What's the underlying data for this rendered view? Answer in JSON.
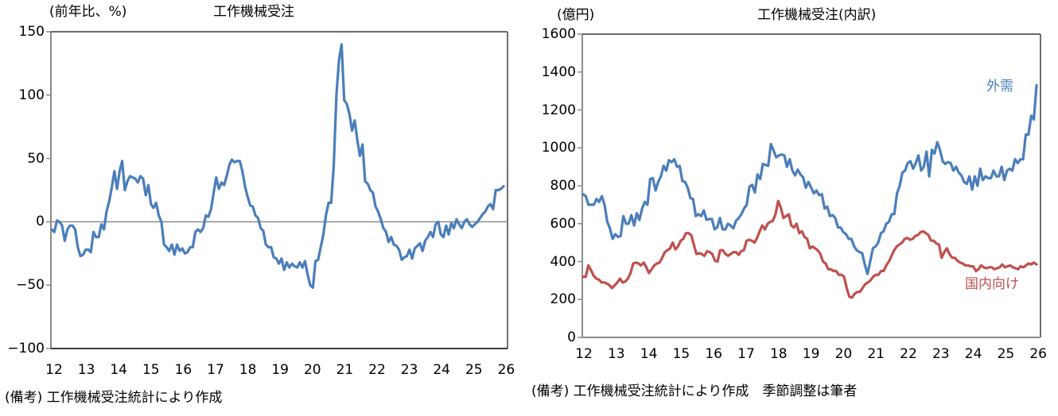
{
  "chart_data": [
    {
      "type": "line",
      "title": "工作機械受注",
      "ylabel": "(前年比、%)",
      "xlabel": "",
      "ylim": [
        -100,
        150
      ],
      "yticks": [
        150,
        100,
        50,
        0,
        -50,
        -100
      ],
      "categories": [
        "12",
        "13",
        "14",
        "15",
        "16",
        "17",
        "18",
        "19",
        "20",
        "21",
        "22",
        "23",
        "24",
        "25",
        "26"
      ],
      "x_start": "2012-01",
      "x_freq": "monthly",
      "legend": [],
      "grid": false,
      "zero_line": true,
      "note": "(備考) 工作機械受注統計により作成",
      "series": [
        {
          "name": "工作機械受注(前年比)",
          "color": "#4a7ebb",
          "values": [
            -6,
            -8,
            1,
            0,
            -3,
            -15,
            -6,
            -3,
            -3,
            -6,
            -20,
            -27,
            -26,
            -22,
            -22,
            -24,
            -8,
            -12,
            -12,
            -2,
            -6,
            8,
            16,
            27,
            40,
            26,
            40,
            48,
            25,
            32,
            36,
            35,
            34,
            31,
            36,
            34,
            21,
            29,
            14,
            11,
            15,
            5,
            0,
            -18,
            -20,
            -23,
            -18,
            -26,
            -18,
            -23,
            -21,
            -25,
            -24,
            -20,
            -20,
            -8,
            -6,
            -8,
            -5,
            5,
            4,
            10,
            23,
            35,
            26,
            31,
            29,
            36,
            45,
            49,
            47,
            48,
            48,
            40,
            28,
            20,
            13,
            12,
            5,
            3,
            -5,
            -7,
            -18,
            -20,
            -20,
            -28,
            -29,
            -33,
            -29,
            -38,
            -32,
            -36,
            -33,
            -35,
            -36,
            -32,
            -36,
            -31,
            -42,
            -50,
            -52,
            -31,
            -30,
            -20,
            -10,
            5,
            15,
            15,
            45,
            100,
            128,
            140,
            96,
            93,
            85,
            72,
            80,
            65,
            52,
            61,
            32,
            30,
            25,
            23,
            12,
            8,
            2,
            -5,
            -8,
            -16,
            -12,
            -18,
            -19,
            -22,
            -30,
            -28,
            -27,
            -22,
            -29,
            -21,
            -19,
            -17,
            -23,
            -15,
            -12,
            -8,
            -12,
            -2,
            0,
            -10,
            -12,
            -3,
            -10,
            -1,
            -5,
            2,
            -2,
            -5,
            0,
            2,
            -2,
            -4,
            -2,
            0,
            3,
            6,
            8,
            12,
            14,
            10,
            25,
            25,
            26,
            28
          ]
        }
      ]
    },
    {
      "type": "line",
      "title": "工作機械受注(内訳)",
      "ylabel": "(億円)",
      "xlabel": "",
      "ylim": [
        0,
        1600
      ],
      "yticks": [
        1600,
        1400,
        1200,
        1000,
        800,
        600,
        400,
        200,
        0
      ],
      "categories": [
        "12",
        "13",
        "14",
        "15",
        "16",
        "17",
        "18",
        "19",
        "20",
        "21",
        "22",
        "23",
        "24",
        "25",
        "26"
      ],
      "x_start": "2012-01",
      "x_freq": "monthly",
      "grid": false,
      "note": "(備考) 工作機械受注統計により作成　季節調整は筆者",
      "annotations": [
        {
          "text": "外需",
          "color": "#4a7ebb"
        },
        {
          "text": "国内向け",
          "color": "#c0504d"
        }
      ],
      "series": [
        {
          "name": "外需",
          "color": "#4a7ebb",
          "values": [
            755,
            745,
            700,
            700,
            700,
            730,
            715,
            745,
            700,
            610,
            575,
            520,
            545,
            530,
            535,
            640,
            600,
            600,
            645,
            590,
            655,
            620,
            680,
            715,
            700,
            835,
            840,
            775,
            820,
            850,
            905,
            880,
            935,
            925,
            940,
            900,
            905,
            825,
            820,
            790,
            735,
            730,
            640,
            650,
            640,
            670,
            620,
            625,
            625,
            570,
            580,
            630,
            570,
            570,
            600,
            590,
            575,
            615,
            630,
            650,
            680,
            700,
            795,
            805,
            765,
            860,
            835,
            915,
            910,
            905,
            1020,
            985,
            950,
            960,
            965,
            960,
            900,
            940,
            880,
            855,
            885,
            860,
            845,
            790,
            820,
            790,
            760,
            775,
            750,
            755,
            680,
            690,
            640,
            645,
            630,
            580,
            580,
            555,
            545,
            520,
            520,
            480,
            460,
            450,
            445,
            385,
            335,
            400,
            470,
            480,
            500,
            550,
            560,
            600,
            610,
            650,
            650,
            760,
            800,
            870,
            880,
            920,
            930,
            890,
            920,
            960,
            880,
            900,
            980,
            850,
            990,
            970,
            1030,
            990,
            930,
            915,
            925,
            920,
            880,
            900,
            870,
            855,
            820,
            810,
            850,
            780,
            850,
            800,
            890,
            830,
            850,
            840,
            840,
            880,
            850,
            850,
            900,
            830,
            880,
            890,
            880,
            940,
            920,
            940,
            940,
            1070,
            1070,
            1170,
            1150,
            1330
          ]
        },
        {
          "name": "国内向け",
          "color": "#c0504d",
          "values": [
            320,
            320,
            380,
            355,
            325,
            310,
            305,
            290,
            290,
            285,
            275,
            260,
            275,
            290,
            310,
            290,
            295,
            310,
            340,
            390,
            395,
            390,
            380,
            395,
            370,
            340,
            360,
            380,
            390,
            395,
            420,
            450,
            460,
            470,
            500,
            465,
            480,
            510,
            520,
            550,
            550,
            540,
            490,
            440,
            445,
            440,
            430,
            455,
            450,
            440,
            405,
            400,
            460,
            460,
            440,
            430,
            440,
            450,
            450,
            435,
            455,
            460,
            510,
            515,
            510,
            500,
            525,
            560,
            590,
            570,
            600,
            610,
            615,
            650,
            720,
            685,
            630,
            640,
            650,
            590,
            580,
            600,
            550,
            560,
            530,
            520,
            470,
            480,
            470,
            460,
            440,
            400,
            390,
            360,
            360,
            350,
            350,
            330,
            330,
            320,
            260,
            215,
            210,
            230,
            240,
            240,
            260,
            280,
            290,
            300,
            320,
            330,
            330,
            350,
            350,
            380,
            400,
            430,
            460,
            480,
            490,
            500,
            520,
            525,
            515,
            520,
            535,
            540,
            555,
            560,
            550,
            540,
            510,
            510,
            495,
            490,
            420,
            450,
            470,
            440,
            420,
            420,
            405,
            395,
            390,
            380,
            380,
            375,
            375,
            350,
            360,
            380,
            370,
            365,
            370,
            370,
            360,
            365,
            370,
            385,
            370,
            375,
            380,
            370,
            365,
            360,
            375,
            370,
            380,
            390,
            385,
            395,
            385
          ]
        }
      ]
    }
  ],
  "left_chart": {
    "title": "工作機械受注",
    "unit": "(前年比、%)",
    "yticks": [
      "150",
      "100",
      "50",
      "0",
      "−50",
      "−100"
    ],
    "xticks": [
      "12",
      "13",
      "14",
      "15",
      "16",
      "17",
      "18",
      "19",
      "20",
      "21",
      "22",
      "23",
      "24",
      "25",
      "26"
    ],
    "note": "(備考) 工作機械受注統計により作成"
  },
  "right_chart": {
    "title": "工作機械受注(内訳)",
    "unit": "(億円)",
    "yticks": [
      "1600",
      "1400",
      "1200",
      "1000",
      "800",
      "600",
      "400",
      "200",
      "0"
    ],
    "xticks": [
      "12",
      "13",
      "14",
      "15",
      "16",
      "17",
      "18",
      "19",
      "20",
      "21",
      "22",
      "23",
      "24",
      "25",
      "26"
    ],
    "label_foreign": "外需",
    "label_domestic": "国内向け",
    "note": "(備考) 工作機械受注統計により作成　季節調整は筆者",
    "colors": {
      "foreign": "#4a7ebb",
      "domestic": "#c0504d"
    }
  }
}
